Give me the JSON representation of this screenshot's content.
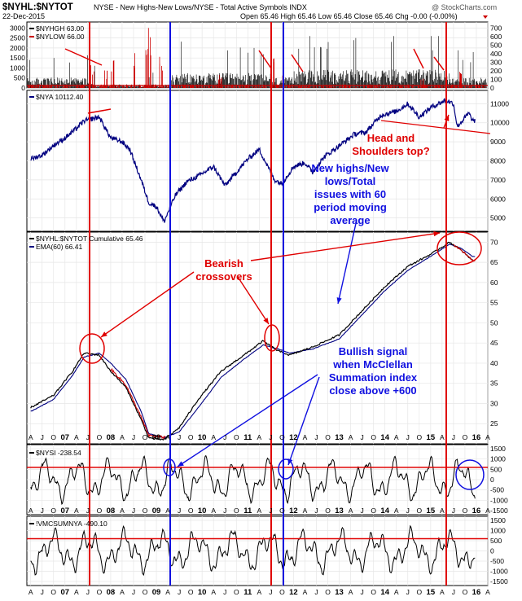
{
  "header": {
    "title_symbol": "$NYHL:$NYTOT",
    "title_desc": "NYSE - New Highs-New Lows/NYSE - Total Active Symbols  INDX",
    "watermark": "@ StockCharts.com",
    "date": "22-Dec-2015",
    "ohlc": "Open 65.46  High 65.46  Low 65.46  Close 65.46  Chg -0.00 (-0.00%)"
  },
  "colors": {
    "black": "#000000",
    "red": "#cc0000",
    "navy": "#000080",
    "annot_red": "#e00000",
    "annot_blue": "#1010e0",
    "panel_bg": "#ffffff",
    "grid": "#e6e6e6"
  },
  "x_axis": {
    "months": [
      "A",
      "J",
      "O",
      "07",
      "A",
      "J",
      "O",
      "08",
      "A",
      "J",
      "O",
      "09",
      "A",
      "J",
      "O",
      "10",
      "A",
      "J",
      "O",
      "11",
      "A",
      "J",
      "O",
      "12",
      "A",
      "J",
      "O",
      "13",
      "A",
      "J",
      "O",
      "14",
      "A",
      "J",
      "O",
      "15",
      "A",
      "J",
      "O",
      "16",
      "A"
    ]
  },
  "panels": [
    {
      "id": "p1",
      "legend": [
        {
          "label": "$NYHGH 63.00",
          "color": "#000000"
        },
        {
          "label": "$NYLOW 66.00",
          "color": "#cc0000"
        }
      ],
      "left_ticks": [
        "3000",
        "2500",
        "2000",
        "1500",
        "1000",
        "500",
        "0"
      ],
      "right_ticks": [
        "700",
        "600",
        "500",
        "400",
        "300",
        "200",
        "100",
        "0"
      ]
    },
    {
      "id": "p2",
      "legend": [
        {
          "label": "$NYA 10112.40",
          "color": "#000080"
        }
      ],
      "right_ticks": [
        "11000",
        "10000",
        "9000",
        "8000",
        "7000",
        "6000",
        "5000"
      ]
    },
    {
      "id": "p3",
      "legend": [
        {
          "label": "$NYHL:$NYTOT Cumulative 65.46",
          "color": "#000000"
        },
        {
          "label": "EMA(60) 66.41",
          "color": "#000080"
        }
      ],
      "right_ticks": [
        "70",
        "65",
        "60",
        "55",
        "50",
        "45",
        "40",
        "35",
        "30",
        "25"
      ]
    },
    {
      "id": "p4",
      "legend": [
        {
          "label": "$NYSI -238.54",
          "color": "#000000"
        }
      ],
      "right_ticks": [
        "1500",
        "1000",
        "500",
        "0",
        "-500",
        "-1000",
        "-1500"
      ]
    },
    {
      "id": "p5",
      "legend": [
        {
          "label": "!VMCSUMNYA -490.10",
          "color": "#000000"
        }
      ],
      "right_ticks": [
        "1500",
        "1000",
        "500",
        "0",
        "-500",
        "-1000",
        "-1500"
      ]
    }
  ],
  "annotations": {
    "head_shoulders": "Head and\nShoulders top?",
    "new_highs": "New highs/New\nlows/Total\nissues with 60\nperiod moving\naverage",
    "bearish": "Bearish\ncrossovers",
    "bullish": "Bullish signal\nwhen McClellan\nSummation index\nclose above +600"
  },
  "chart_data": [
    {
      "type": "line",
      "panel": "NYSE New Highs / New Lows",
      "series": [
        {
          "name": "$NYHGH",
          "last": 63.0,
          "typical_range": [
            0,
            2500
          ]
        },
        {
          "name": "$NYLOW",
          "last": 66.0,
          "spikes": [
            {
              "x": "2008-10",
              "y": 3000
            },
            {
              "x": "2011-08",
              "y": 1500
            }
          ]
        }
      ]
    },
    {
      "type": "line",
      "panel": "$NYA",
      "series": [
        {
          "name": "$NYA",
          "points": [
            [
              "2006-04",
              8100
            ],
            [
              "2006-07",
              8300
            ],
            [
              "2006-10",
              8800
            ],
            [
              "2007-01",
              9200
            ],
            [
              "2007-04",
              9700
            ],
            [
              "2007-06",
              10100
            ],
            [
              "2007-10",
              10300
            ],
            [
              "2008-01",
              9200
            ],
            [
              "2008-04",
              9000
            ],
            [
              "2008-06",
              8600
            ],
            [
              "2008-09",
              7000
            ],
            [
              "2008-11",
              5800
            ],
            [
              "2009-01",
              5600
            ],
            [
              "2009-03",
              4800
            ],
            [
              "2009-06",
              6200
            ],
            [
              "2009-09",
              6900
            ],
            [
              "2009-12",
              7200
            ],
            [
              "2010-04",
              7700
            ],
            [
              "2010-07",
              6700
            ],
            [
              "2010-10",
              7400
            ],
            [
              "2011-01",
              8100
            ],
            [
              "2011-04",
              8600
            ],
            [
              "2011-08",
              7000
            ],
            [
              "2011-10",
              6800
            ],
            [
              "2012-01",
              7700
            ],
            [
              "2012-04",
              7900
            ],
            [
              "2012-06",
              7400
            ],
            [
              "2012-09",
              8200
            ],
            [
              "2013-01",
              8800
            ],
            [
              "2013-05",
              9400
            ],
            [
              "2013-08",
              9500
            ],
            [
              "2013-12",
              10400
            ],
            [
              "2014-04",
              10600
            ],
            [
              "2014-07",
              11000
            ],
            [
              "2014-10",
              10300
            ],
            [
              "2015-01",
              10800
            ],
            [
              "2015-05",
              11200
            ],
            [
              "2015-07",
              11000
            ],
            [
              "2015-08",
              9800
            ],
            [
              "2015-11",
              10500
            ],
            [
              "2015-12",
              10112
            ]
          ]
        }
      ],
      "ylim": [
        5000,
        11500
      ]
    },
    {
      "type": "line",
      "panel": "$NYHL:$NYTOT Cumulative",
      "series": [
        {
          "name": "$NYHL:$NYTOT Cumulative",
          "last": 65.46,
          "points": [
            [
              "2006-04",
              29
            ],
            [
              "2006-10",
              32
            ],
            [
              "2007-03",
              38
            ],
            [
              "2007-06",
              42.5
            ],
            [
              "2007-10",
              42
            ],
            [
              "2008-01",
              38
            ],
            [
              "2008-05",
              34
            ],
            [
              "2008-09",
              26
            ],
            [
              "2008-11",
              21.5
            ],
            [
              "2009-03",
              21
            ],
            [
              "2009-07",
              24
            ],
            [
              "2009-12",
              31
            ],
            [
              "2010-06",
              38
            ],
            [
              "2010-12",
              42
            ],
            [
              "2011-05",
              45.5
            ],
            [
              "2011-09",
              43
            ],
            [
              "2011-12",
              42
            ],
            [
              "2012-06",
              44
            ],
            [
              "2013-01",
              47
            ],
            [
              "2013-06",
              52
            ],
            [
              "2014-01",
              59
            ],
            [
              "2014-07",
              64
            ],
            [
              "2015-01",
              67
            ],
            [
              "2015-06",
              70
            ],
            [
              "2015-09",
              68
            ],
            [
              "2015-12",
              65.46
            ]
          ]
        },
        {
          "name": "EMA(60)",
          "last": 66.41,
          "points": [
            [
              "2006-04",
              28
            ],
            [
              "2006-10",
              31
            ],
            [
              "2007-03",
              37
            ],
            [
              "2007-06",
              41.5
            ],
            [
              "2007-10",
              42.5
            ],
            [
              "2008-01",
              40
            ],
            [
              "2008-05",
              36
            ],
            [
              "2008-09",
              28
            ],
            [
              "2008-11",
              22.5
            ],
            [
              "2009-03",
              21.5
            ],
            [
              "2009-07",
              23
            ],
            [
              "2009-12",
              29
            ],
            [
              "2010-06",
              36.5
            ],
            [
              "2010-12",
              41
            ],
            [
              "2011-05",
              44.5
            ],
            [
              "2011-09",
              43.5
            ],
            [
              "2011-12",
              42.5
            ],
            [
              "2012-06",
              43.5
            ],
            [
              "2013-01",
              46
            ],
            [
              "2013-06",
              51
            ],
            [
              "2014-01",
              58
            ],
            [
              "2014-07",
              63
            ],
            [
              "2015-01",
              66.5
            ],
            [
              "2015-06",
              69.5
            ],
            [
              "2015-09",
              68.5
            ],
            [
              "2015-12",
              66.41
            ]
          ]
        }
      ],
      "ylim": [
        20,
        72
      ]
    },
    {
      "type": "line",
      "panel": "$NYSI",
      "series": [
        {
          "name": "$NYSI",
          "last": -238.54
        }
      ],
      "reference_line": 600,
      "ylim": [
        -1500,
        1500
      ]
    },
    {
      "type": "line",
      "panel": "!VMCSUMNYA",
      "series": [
        {
          "name": "!VMCSUMNYA",
          "last": -490.1
        }
      ],
      "reference_line": 600,
      "ylim": [
        -1500,
        1500
      ]
    }
  ]
}
